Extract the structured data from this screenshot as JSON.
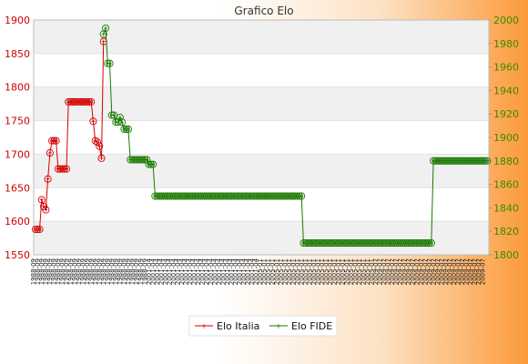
{
  "chart_data": {
    "type": "line",
    "title": "Grafico Elo",
    "y_left": {
      "min": 1550,
      "max": 1900,
      "ticks": [
        1550,
        1600,
        1650,
        1700,
        1750,
        1800,
        1850,
        1900
      ],
      "color": "#d40000"
    },
    "y_right": {
      "min": 1800,
      "max": 2000,
      "ticks": [
        1800,
        1820,
        1840,
        1860,
        1880,
        1900,
        1920,
        1940,
        1960,
        1980,
        2000
      ],
      "color": "#3a8a00"
    },
    "grid": true,
    "legend_position": "bottom",
    "series": [
      {
        "name": "Elo Italia",
        "axis": "left",
        "color": "#d40000",
        "x_start": 0,
        "values": [
          1588,
          1588,
          1588,
          1632,
          1622,
          1617,
          1663,
          1702,
          1720,
          1720,
          1720,
          1678,
          1678,
          1678,
          1678,
          1678,
          1778,
          1778,
          1778,
          1778,
          1778,
          1778,
          1778,
          1778,
          1778,
          1778,
          1778,
          1778,
          1749,
          1720,
          1718,
          1712,
          1694,
          1868
        ]
      },
      {
        "name": "Elo FIDE",
        "axis": "right",
        "color": "#1a7a00",
        "x_start": 33,
        "values": [
          1988,
          1993,
          1963,
          1963,
          1919,
          1919,
          1913,
          1913,
          1917,
          1913,
          1907,
          1907,
          1907,
          1881,
          1881,
          1881,
          1881,
          1881,
          1881,
          1881,
          1881,
          1881,
          1877,
          1877,
          1877,
          1850,
          1850,
          1850,
          1850,
          1850,
          1850,
          1850,
          1850,
          1850,
          1850,
          1850,
          1850,
          1850,
          1850,
          1850,
          1850,
          1850,
          1850,
          1850,
          1850,
          1850,
          1850,
          1850,
          1850,
          1850,
          1850,
          1850,
          1850,
          1850,
          1850,
          1850,
          1850,
          1850,
          1850,
          1850,
          1850,
          1850,
          1850,
          1850,
          1850,
          1850,
          1850,
          1850,
          1850,
          1850,
          1850,
          1850,
          1850,
          1850,
          1850,
          1850,
          1850,
          1850,
          1850,
          1850,
          1850,
          1850,
          1850,
          1850,
          1850,
          1850,
          1850,
          1850,
          1850,
          1850,
          1850,
          1850,
          1850,
          1850,
          1850,
          1850,
          1850,
          1810,
          1810,
          1810,
          1810,
          1810,
          1810,
          1810,
          1810,
          1810,
          1810,
          1810,
          1810,
          1810,
          1810,
          1810,
          1810,
          1810,
          1810,
          1810,
          1810,
          1810,
          1810,
          1810,
          1810,
          1810,
          1810,
          1810,
          1810,
          1810,
          1810,
          1810,
          1810,
          1810,
          1810,
          1810,
          1810,
          1810,
          1810,
          1810,
          1810,
          1810,
          1810,
          1810,
          1810,
          1810,
          1810,
          1810,
          1810,
          1810,
          1810,
          1810,
          1810,
          1810,
          1810,
          1810,
          1810,
          1810,
          1810,
          1810,
          1810,
          1810,
          1810,
          1810,
          1880,
          1880,
          1880,
          1880,
          1880,
          1880,
          1880,
          1880,
          1880,
          1880,
          1880,
          1880,
          1880,
          1880,
          1880,
          1880,
          1880,
          1880,
          1880,
          1880,
          1880,
          1880,
          1880,
          1880,
          1880,
          1880,
          1880
        ]
      }
    ],
    "x_labels_sample": [
      "1988-09",
      "2001-04",
      "2005-01",
      "2009-07"
    ]
  }
}
